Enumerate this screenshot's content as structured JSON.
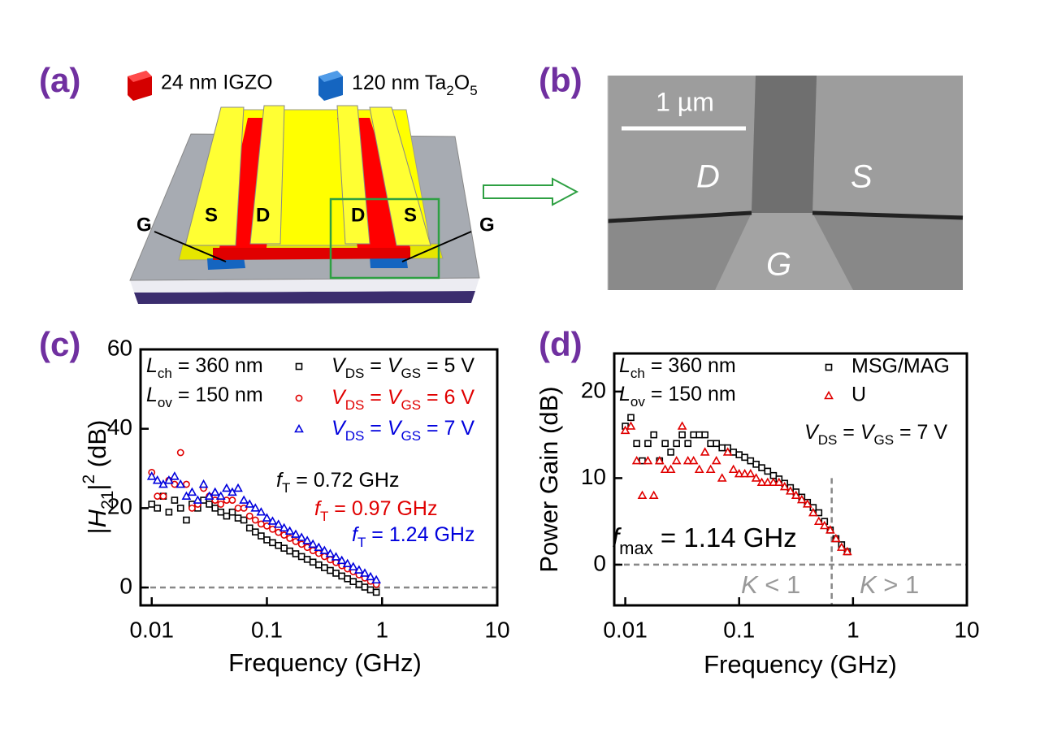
{
  "panel_labels": [
    "(a)",
    "(b)",
    "(c)",
    "(d)"
  ],
  "diagram_a": {
    "legend": [
      "24 nm IGZO",
      [
        "120 nm Ta",
        "2",
        "O",
        "5"
      ]
    ],
    "labels": [
      "S",
      "D",
      "D",
      "S",
      "G",
      "G"
    ]
  },
  "image_b": {
    "scale_bar": "1 µm",
    "labels": [
      "D",
      "S",
      "G"
    ]
  },
  "chart_data": [
    {
      "type": "scatter",
      "xscale": "log",
      "x_label": "Frequency (GHz)",
      "y_label": [
        "|",
        "H",
        "21",
        "|",
        "2",
        " (dB)"
      ],
      "xlim": [
        0.008,
        10
      ],
      "xticks": [
        0.01,
        0.1,
        1,
        10
      ],
      "ylim": [
        -4.5,
        60
      ],
      "yticks": [
        0,
        20,
        40,
        60
      ],
      "hlines": [
        0
      ],
      "x": [
        0.01,
        0.0112,
        0.0126,
        0.0141,
        0.0158,
        0.0178,
        0.02,
        0.0224,
        0.0251,
        0.0282,
        0.0316,
        0.0355,
        0.0398,
        0.0447,
        0.0501,
        0.0562,
        0.0631,
        0.0708,
        0.0794,
        0.0891,
        0.1,
        0.112,
        0.126,
        0.141,
        0.158,
        0.178,
        0.2,
        0.224,
        0.251,
        0.282,
        0.316,
        0.355,
        0.398,
        0.447,
        0.501,
        0.562,
        0.631,
        0.708,
        0.794,
        0.891
      ],
      "series": [
        {
          "name": [
            "V",
            "DS",
            " = ",
            "V",
            "GS",
            " = 5 V"
          ],
          "color": "#000000",
          "marker": "square",
          "values": [
            21,
            20,
            23,
            19,
            22,
            20,
            17,
            21,
            20,
            22,
            21,
            20,
            19,
            18,
            19,
            17.5,
            17,
            15,
            14,
            13,
            12,
            11.3,
            10.6,
            9.9,
            9.2,
            8.5,
            7.8,
            7.1,
            6.4,
            5.7,
            5,
            4.3,
            3.6,
            2.9,
            2.2,
            1.5,
            0.8,
            0.1,
            -0.6,
            -1.2
          ]
        },
        {
          "name": [
            "V",
            "DS",
            " = ",
            "V",
            "GS",
            " = 6 V"
          ],
          "color": "#e00000",
          "marker": "circle",
          "values": [
            29,
            23,
            23,
            27,
            26,
            34,
            26,
            20,
            21,
            25,
            23,
            22,
            21,
            22,
            22,
            20,
            20,
            18,
            17,
            16,
            15.5,
            14.7,
            13.9,
            13.2,
            12.4,
            11.6,
            10.9,
            10.1,
            9.3,
            8.6,
            7.8,
            7,
            6.3,
            5.5,
            4.7,
            4,
            3.2,
            2.4,
            1.6,
            0.8
          ]
        },
        {
          "name": [
            "V",
            "DS",
            " = ",
            "V",
            "GS",
            " = 7 V"
          ],
          "color": "#0000dd",
          "marker": "triangle",
          "values": [
            28,
            27,
            26,
            27,
            28,
            26,
            23,
            24,
            22,
            26,
            23,
            24,
            23,
            25,
            24,
            25,
            22,
            21,
            20,
            19,
            17.5,
            16.7,
            15.9,
            15,
            14.2,
            13.4,
            12.6,
            11.8,
            10.9,
            10.1,
            9.3,
            8.5,
            7.7,
            6.8,
            6,
            5.2,
            4.4,
            3.6,
            2.7,
            1.9
          ]
        }
      ],
      "annotations": [
        [
          "L",
          "ch",
          " = 360 nm"
        ],
        [
          "L",
          "ov",
          " = 150 nm"
        ],
        [
          "f",
          "T",
          " = 0.72 GHz"
        ],
        [
          "f",
          "T",
          " = 0.97 GHz"
        ],
        [
          "f",
          "T",
          " = 1.24 GHz"
        ]
      ]
    },
    {
      "type": "scatter",
      "xscale": "log",
      "x_label": "Frequency (GHz)",
      "y_label": "Power Gain (dB)",
      "xlim": [
        0.008,
        10
      ],
      "xticks": [
        0.01,
        0.1,
        1,
        10
      ],
      "ylim": [
        -4.7,
        24.4
      ],
      "yticks": [
        0,
        10,
        20
      ],
      "hlines": [
        0
      ],
      "vlines": [
        0.65
      ],
      "x": [
        0.01,
        0.0112,
        0.0126,
        0.0141,
        0.0158,
        0.0178,
        0.02,
        0.0224,
        0.0251,
        0.0282,
        0.0316,
        0.0355,
        0.0398,
        0.0447,
        0.0501,
        0.0562,
        0.0631,
        0.0708,
        0.0794,
        0.0891,
        0.1,
        0.112,
        0.126,
        0.141,
        0.158,
        0.178,
        0.2,
        0.224,
        0.251,
        0.282,
        0.316,
        0.355,
        0.398,
        0.447,
        0.501,
        0.562,
        0.631,
        0.708,
        0.794,
        0.891
      ],
      "series": [
        {
          "name": "MSG/MAG",
          "color": "#000000",
          "marker": "square",
          "values": [
            16,
            17,
            14,
            12,
            14,
            15,
            12,
            14,
            13,
            14,
            15,
            14,
            15,
            15,
            15,
            14,
            14,
            13.5,
            13.5,
            13,
            12.7,
            12.4,
            12,
            11.6,
            11.2,
            10.8,
            10.3,
            9.9,
            9.4,
            8.9,
            8.4,
            7.8,
            7.2,
            6.6,
            6,
            5,
            4,
            3,
            2.3,
            1.5
          ]
        },
        {
          "name": "U",
          "color": "#e00000",
          "marker": "triangle",
          "values": [
            15.5,
            16,
            12,
            8,
            12,
            8,
            12,
            11,
            11,
            12,
            16,
            12,
            12,
            11,
            13,
            11,
            12,
            10,
            13,
            11,
            10.5,
            10.5,
            10.5,
            10,
            9.5,
            9.5,
            9.5,
            9.5,
            9,
            8.5,
            8,
            7.5,
            7,
            6,
            5,
            4.5,
            4,
            3,
            2,
            1.5
          ]
        }
      ],
      "annotations": [
        [
          "L",
          "ch",
          " = 360 nm"
        ],
        [
          "L",
          "ov",
          " = 150 nm"
        ],
        [
          "V",
          "DS",
          " = ",
          "V",
          "GS",
          " = 7 V"
        ],
        [
          "f",
          "max",
          " = 1.14 GHz"
        ],
        [
          "K",
          " < 1"
        ],
        [
          "K",
          " > 1"
        ]
      ]
    }
  ]
}
